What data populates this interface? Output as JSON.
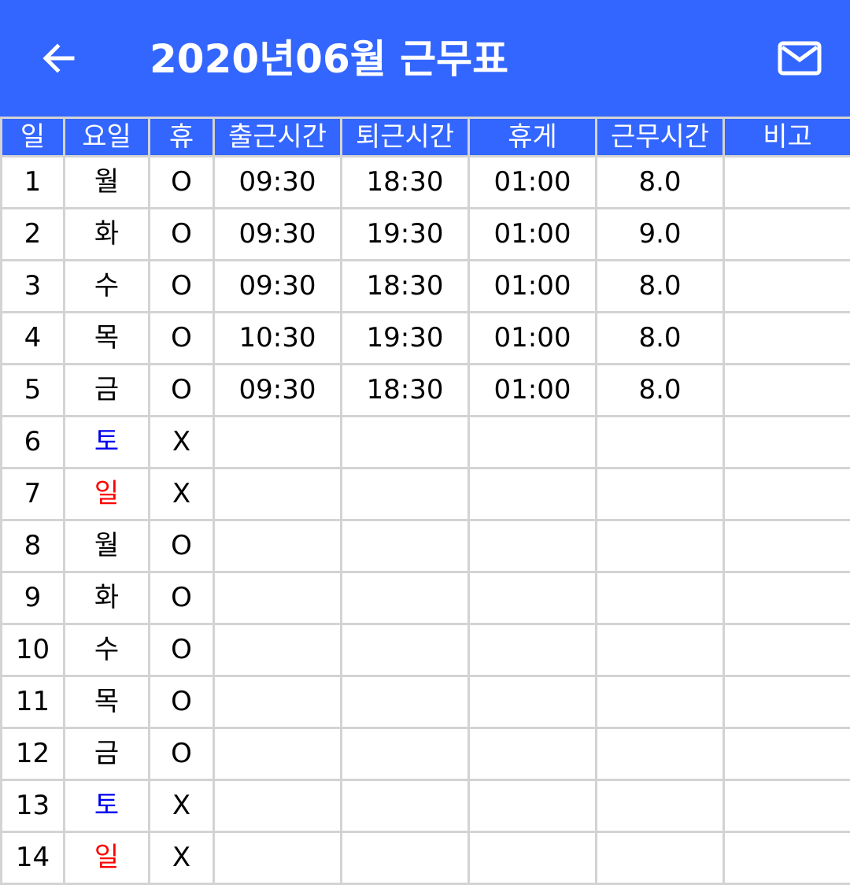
{
  "colors": {
    "accent": "#3366ff",
    "saturday": "#0000ee",
    "sunday": "#ff0000",
    "grid": "#d3d3d3"
  },
  "appbar": {
    "back_icon": "arrow-left-icon",
    "title": "2020년06월 근무표",
    "mail_icon": "mail-icon"
  },
  "table": {
    "headers": [
      "일",
      "요일",
      "휴",
      "출근시간",
      "퇴근시간",
      "휴게",
      "근무시간",
      "비고"
    ],
    "rows": [
      {
        "day": "1",
        "weekday": "월",
        "rest": "O",
        "start": "09:30",
        "end": "18:30",
        "break": "01:00",
        "hours": "8.0",
        "note": "",
        "weekday_type": "weekday"
      },
      {
        "day": "2",
        "weekday": "화",
        "rest": "O",
        "start": "09:30",
        "end": "19:30",
        "break": "01:00",
        "hours": "9.0",
        "note": "",
        "weekday_type": "weekday"
      },
      {
        "day": "3",
        "weekday": "수",
        "rest": "O",
        "start": "09:30",
        "end": "18:30",
        "break": "01:00",
        "hours": "8.0",
        "note": "",
        "weekday_type": "weekday"
      },
      {
        "day": "4",
        "weekday": "목",
        "rest": "O",
        "start": "10:30",
        "end": "19:30",
        "break": "01:00",
        "hours": "8.0",
        "note": "",
        "weekday_type": "weekday"
      },
      {
        "day": "5",
        "weekday": "금",
        "rest": "O",
        "start": "09:30",
        "end": "18:30",
        "break": "01:00",
        "hours": "8.0",
        "note": "",
        "weekday_type": "weekday"
      },
      {
        "day": "6",
        "weekday": "토",
        "rest": "X",
        "start": "",
        "end": "",
        "break": "",
        "hours": "",
        "note": "",
        "weekday_type": "saturday"
      },
      {
        "day": "7",
        "weekday": "일",
        "rest": "X",
        "start": "",
        "end": "",
        "break": "",
        "hours": "",
        "note": "",
        "weekday_type": "sunday"
      },
      {
        "day": "8",
        "weekday": "월",
        "rest": "O",
        "start": "",
        "end": "",
        "break": "",
        "hours": "",
        "note": "",
        "weekday_type": "weekday"
      },
      {
        "day": "9",
        "weekday": "화",
        "rest": "O",
        "start": "",
        "end": "",
        "break": "",
        "hours": "",
        "note": "",
        "weekday_type": "weekday"
      },
      {
        "day": "10",
        "weekday": "수",
        "rest": "O",
        "start": "",
        "end": "",
        "break": "",
        "hours": "",
        "note": "",
        "weekday_type": "weekday"
      },
      {
        "day": "11",
        "weekday": "목",
        "rest": "O",
        "start": "",
        "end": "",
        "break": "",
        "hours": "",
        "note": "",
        "weekday_type": "weekday"
      },
      {
        "day": "12",
        "weekday": "금",
        "rest": "O",
        "start": "",
        "end": "",
        "break": "",
        "hours": "",
        "note": "",
        "weekday_type": "weekday"
      },
      {
        "day": "13",
        "weekday": "토",
        "rest": "X",
        "start": "",
        "end": "",
        "break": "",
        "hours": "",
        "note": "",
        "weekday_type": "saturday"
      },
      {
        "day": "14",
        "weekday": "일",
        "rest": "X",
        "start": "",
        "end": "",
        "break": "",
        "hours": "",
        "note": "",
        "weekday_type": "sunday"
      }
    ]
  }
}
